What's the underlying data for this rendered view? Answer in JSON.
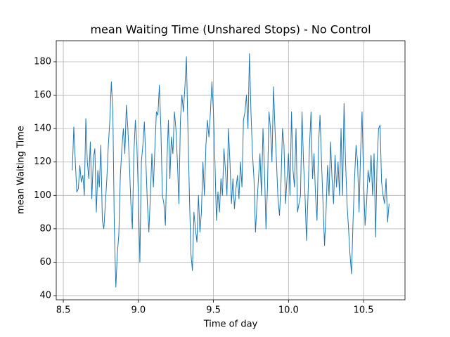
{
  "chart_data": {
    "type": "line",
    "title": "mean Waiting Time (Unshared Stops) - No Control",
    "x_label": "Time of day",
    "y_label": "mean Waiting Time",
    "color": "#1f77b4",
    "grid": true,
    "xlim": [
      8.453,
      10.776
    ],
    "ylim": [
      37.5,
      192.6
    ],
    "xticks": [
      8.5,
      {
        "value": 9,
        "label": "9.0"
      },
      9.5,
      {
        "value": 10,
        "label": "10.0"
      },
      10.5
    ],
    "yticks": [
      40,
      60,
      80,
      100,
      120,
      140,
      160,
      180
    ],
    "x": [
      8.56,
      8.57,
      8.58,
      8.59,
      8.6,
      8.61,
      8.62,
      8.63,
      8.64,
      8.65,
      8.66,
      8.67,
      8.68,
      8.69,
      8.7,
      8.71,
      8.72,
      8.73,
      8.74,
      8.75,
      8.76,
      8.77,
      8.78,
      8.79,
      8.8,
      8.81,
      8.82,
      8.83,
      8.84,
      8.85,
      8.86,
      8.87,
      8.88,
      8.89,
      8.9,
      8.91,
      8.92,
      8.93,
      8.94,
      8.95,
      8.96,
      8.97,
      8.98,
      8.99,
      9.0,
      9.01,
      9.02,
      9.03,
      9.04,
      9.05,
      9.06,
      9.07,
      9.08,
      9.09,
      9.1,
      9.11,
      9.12,
      9.13,
      9.14,
      9.15,
      9.16,
      9.17,
      9.18,
      9.19,
      9.2,
      9.21,
      9.22,
      9.23,
      9.24,
      9.25,
      9.26,
      9.27,
      9.28,
      9.29,
      9.3,
      9.31,
      9.32,
      9.33,
      9.34,
      9.35,
      9.36,
      9.37,
      9.38,
      9.39,
      9.4,
      9.41,
      9.42,
      9.43,
      9.44,
      9.45,
      9.46,
      9.47,
      9.48,
      9.49,
      9.5,
      9.51,
      9.52,
      9.53,
      9.54,
      9.55,
      9.56,
      9.57,
      9.58,
      9.59,
      9.6,
      9.61,
      9.62,
      9.63,
      9.64,
      9.65,
      9.66,
      9.67,
      9.68,
      9.69,
      9.7,
      9.71,
      9.72,
      9.73,
      9.74,
      9.75,
      9.76,
      9.77,
      9.78,
      9.79,
      9.8,
      9.81,
      9.82,
      9.83,
      9.84,
      9.85,
      9.86,
      9.87,
      9.88,
      9.89,
      9.9,
      9.91,
      9.92,
      9.93,
      9.94,
      9.95,
      9.96,
      9.97,
      9.98,
      9.99,
      10.0,
      10.01,
      10.02,
      10.03,
      10.04,
      10.05,
      10.06,
      10.07,
      10.08,
      10.09,
      10.1,
      10.11,
      10.12,
      10.13,
      10.14,
      10.15,
      10.16,
      10.17,
      10.18,
      10.19,
      10.2,
      10.21,
      10.22,
      10.23,
      10.24,
      10.25,
      10.26,
      10.27,
      10.28,
      10.29,
      10.3,
      10.31,
      10.32,
      10.33,
      10.34,
      10.35,
      10.36,
      10.37,
      10.38,
      10.39,
      10.4,
      10.41,
      10.42,
      10.43,
      10.44,
      10.45,
      10.46,
      10.47,
      10.48,
      10.49,
      10.5,
      10.51,
      10.52,
      10.53,
      10.54,
      10.55,
      10.56,
      10.57,
      10.58,
      10.59,
      10.6,
      10.61,
      10.62,
      10.63,
      10.64,
      10.65,
      10.66,
      10.67
    ],
    "values": [
      115,
      141,
      120,
      102,
      104,
      118,
      108,
      112,
      100,
      146,
      120,
      110,
      132,
      98,
      122,
      128,
      90,
      115,
      105,
      130,
      85,
      80,
      95,
      110,
      130,
      145,
      168,
      150,
      80,
      45,
      65,
      77,
      112,
      128,
      140,
      125,
      154,
      140,
      120,
      95,
      80,
      125,
      145,
      130,
      100,
      60,
      120,
      130,
      144,
      120,
      95,
      78,
      100,
      125,
      105,
      128,
      150,
      148,
      166,
      140,
      100,
      95,
      82,
      120,
      145,
      110,
      135,
      125,
      150,
      140,
      120,
      95,
      145,
      160,
      150,
      165,
      183,
      140,
      100,
      65,
      55,
      90,
      80,
      72,
      100,
      78,
      90,
      120,
      100,
      130,
      145,
      135,
      150,
      168,
      150,
      120,
      85,
      102,
      90,
      110,
      100,
      128,
      115,
      100,
      140,
      120,
      95,
      110,
      92,
      104,
      112,
      98,
      120,
      105,
      145,
      150,
      160,
      140,
      185,
      150,
      125,
      110,
      78,
      95,
      110,
      125,
      100,
      140,
      115,
      80,
      105,
      150,
      140,
      120,
      165,
      140,
      120,
      98,
      88,
      108,
      140,
      130,
      95,
      110,
      125,
      100,
      150,
      115,
      105,
      140,
      90,
      95,
      100,
      150,
      120,
      100,
      73,
      100,
      130,
      150,
      110,
      125,
      100,
      85,
      130,
      148,
      120,
      95,
      70,
      90,
      118,
      100,
      132,
      110,
      95,
      124,
      105,
      120,
      100,
      140,
      100,
      155,
      120,
      95,
      80,
      64,
      53,
      85,
      110,
      130,
      120,
      90,
      125,
      150,
      110,
      82,
      95,
      115,
      108,
      124,
      100,
      125,
      75,
      120,
      140,
      142,
      108,
      100,
      95,
      110,
      84,
      95
    ]
  }
}
